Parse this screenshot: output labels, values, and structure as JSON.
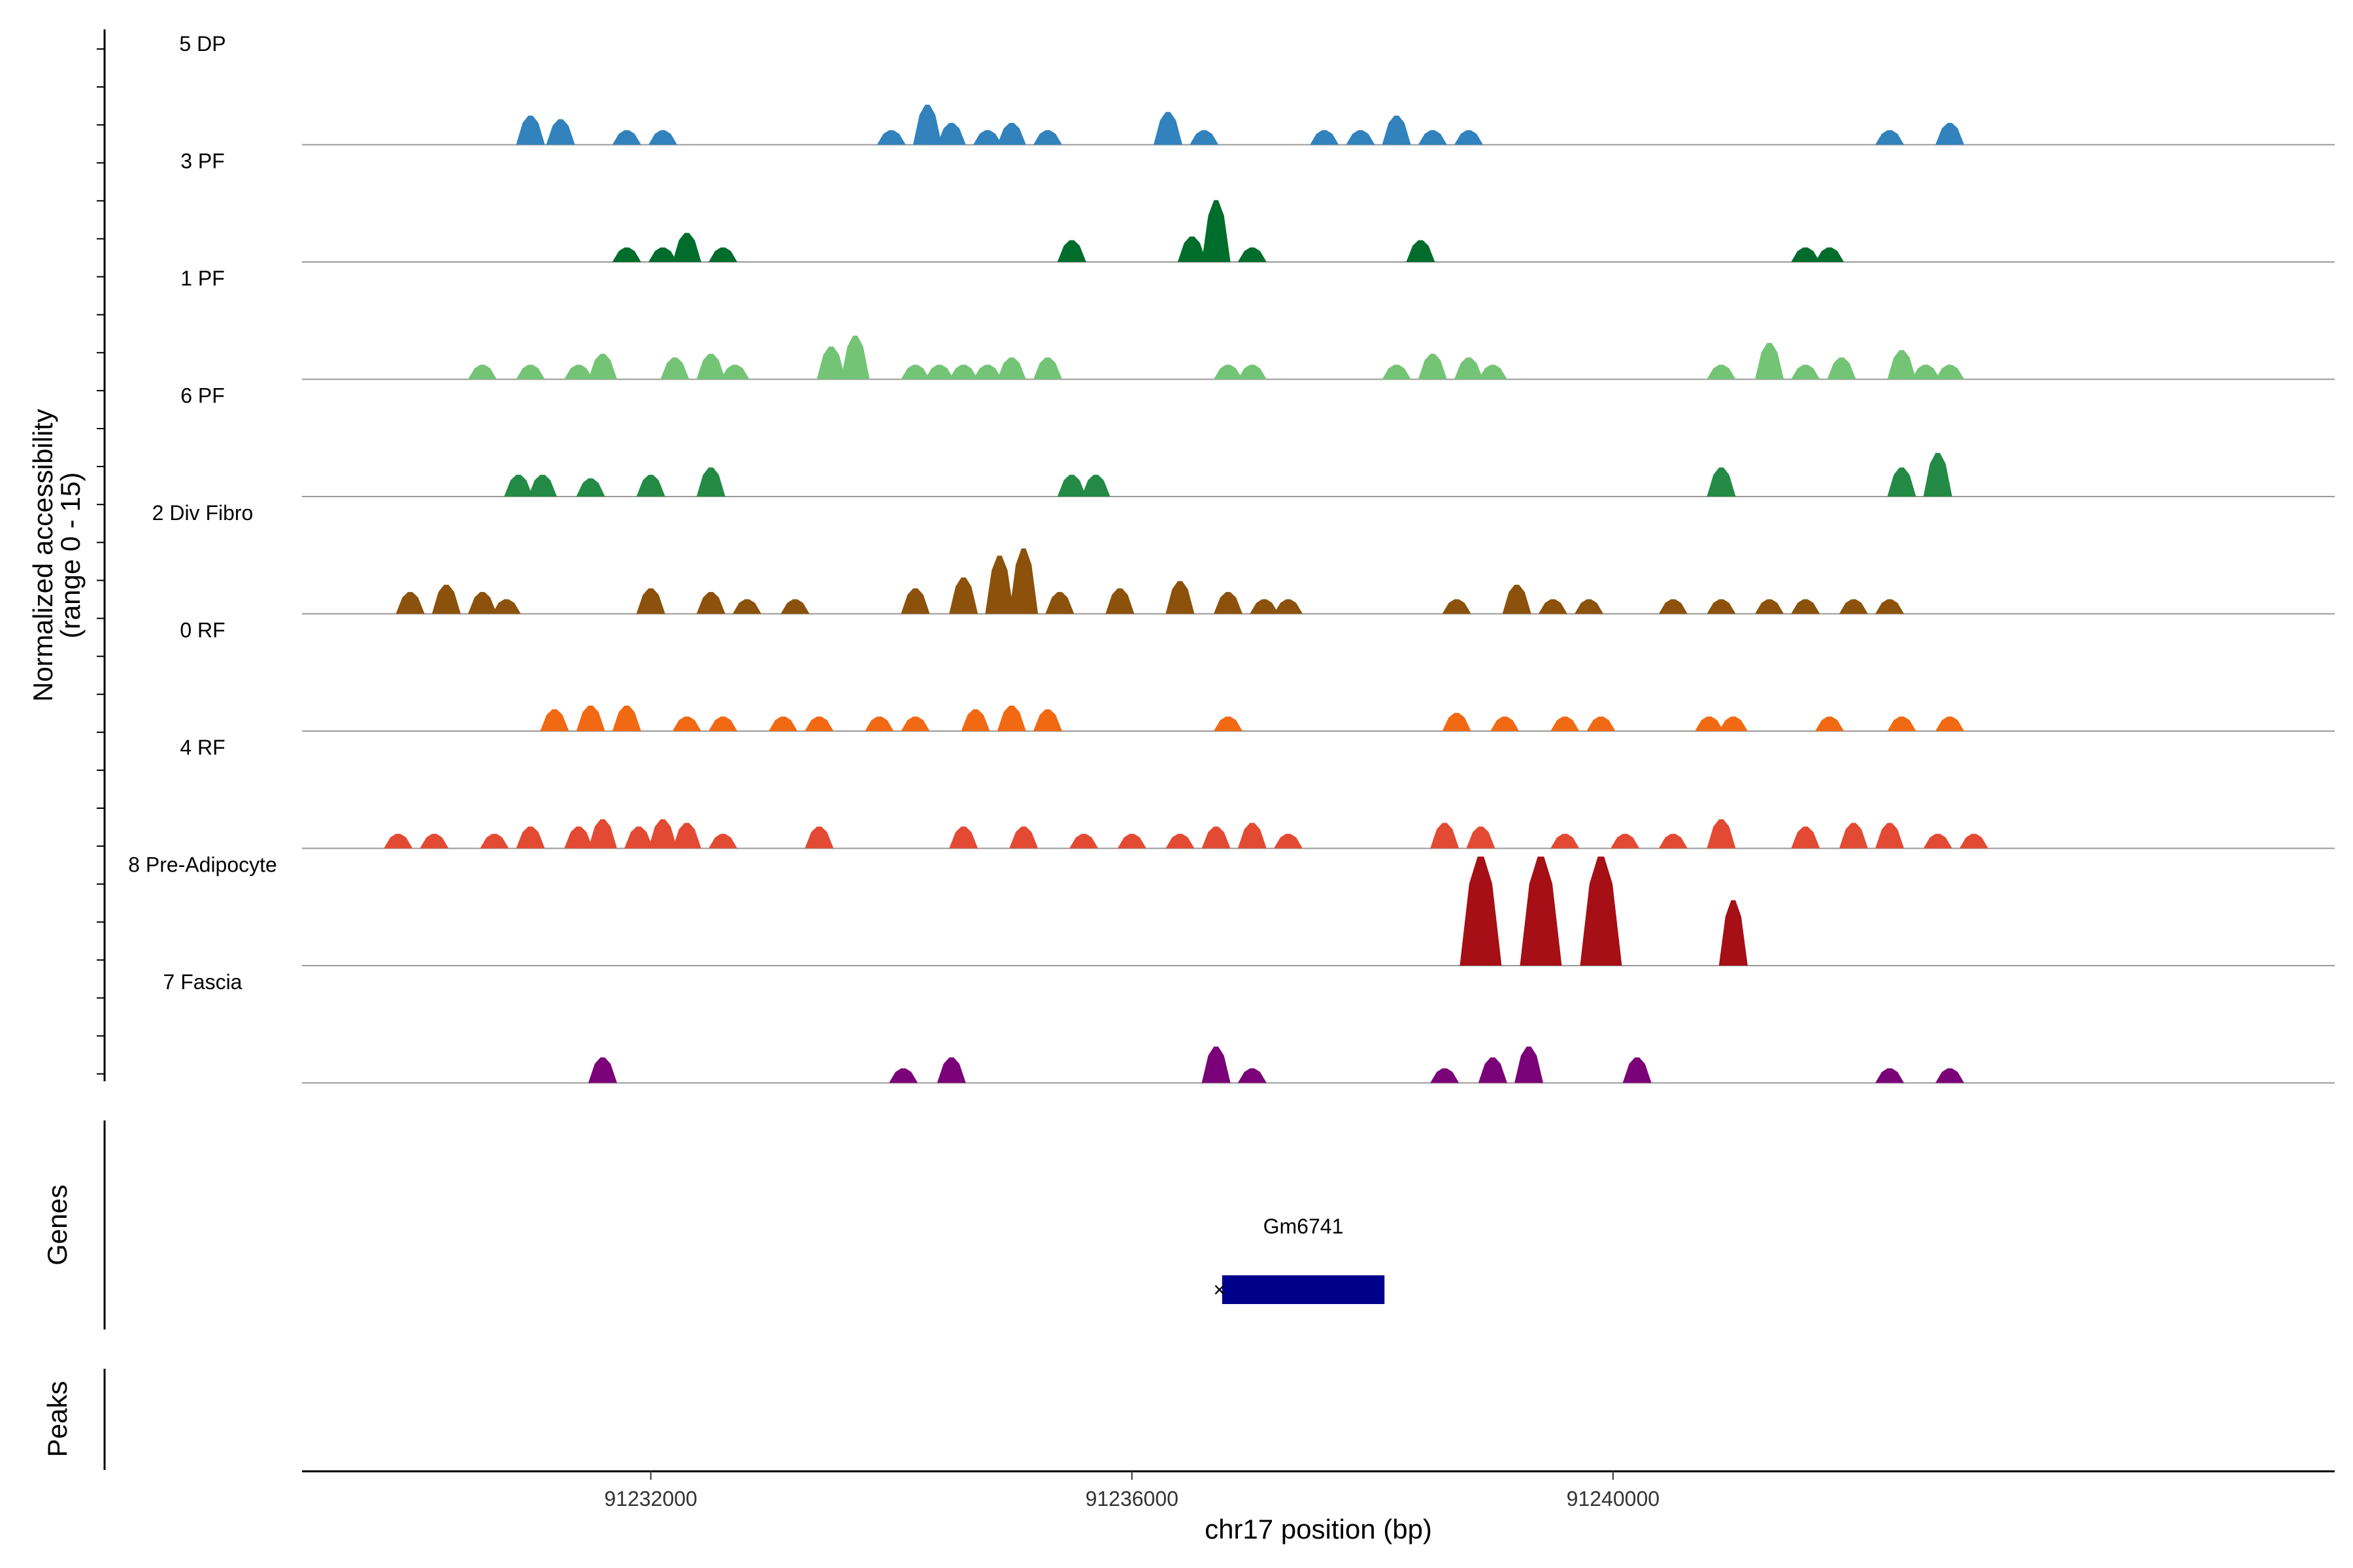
{
  "chart_data": {
    "type": "area",
    "y_axis_title_line1": "Normalized accessibility",
    "y_axis_title_line2": "(range 0 - 15)",
    "ylim": [
      0,
      15
    ],
    "xlabel": "chr17 position (bp)",
    "xlim": [
      91229100,
      91246000
    ],
    "x_ticks": [
      {
        "value": 91232000,
        "label": "91232000"
      },
      {
        "value": 91236000,
        "label": "91236000"
      },
      {
        "value": 91240000,
        "label": "91240000"
      }
    ],
    "tracks": [
      {
        "label": "5 DP",
        "color": "#3182bd",
        "peaks": [
          [
            91231000,
            4
          ],
          [
            91231250,
            3.5
          ],
          [
            91231800,
            2
          ],
          [
            91232100,
            2
          ],
          [
            91234000,
            2
          ],
          [
            91234300,
            5.5
          ],
          [
            91234500,
            3
          ],
          [
            91234800,
            2
          ],
          [
            91235000,
            3
          ],
          [
            91235300,
            2
          ],
          [
            91236300,
            4.5
          ],
          [
            91236600,
            2
          ],
          [
            91237600,
            2
          ],
          [
            91237900,
            2
          ],
          [
            91238200,
            4
          ],
          [
            91238500,
            2
          ],
          [
            91238800,
            2
          ],
          [
            91242300,
            2
          ],
          [
            91242800,
            3
          ]
        ]
      },
      {
        "label": "3 PF",
        "color": "#006d2c",
        "peaks": [
          [
            91231800,
            2
          ],
          [
            91232100,
            2
          ],
          [
            91232300,
            4
          ],
          [
            91232600,
            2
          ],
          [
            91235500,
            3
          ],
          [
            91236500,
            3.5
          ],
          [
            91236700,
            8.5
          ],
          [
            91237000,
            2
          ],
          [
            91238400,
            3
          ],
          [
            91241600,
            2
          ],
          [
            91241800,
            2
          ]
        ]
      },
      {
        "label": "1 PF",
        "color": "#74c476",
        "peaks": [
          [
            91230600,
            2
          ],
          [
            91231000,
            2
          ],
          [
            91231400,
            2
          ],
          [
            91231600,
            3.5
          ],
          [
            91232200,
            3
          ],
          [
            91232500,
            3.5
          ],
          [
            91232700,
            2
          ],
          [
            91233500,
            4.5
          ],
          [
            91233700,
            6
          ],
          [
            91234200,
            2
          ],
          [
            91234400,
            2
          ],
          [
            91234600,
            2
          ],
          [
            91234800,
            2
          ],
          [
            91235000,
            3
          ],
          [
            91235300,
            3
          ],
          [
            91236800,
            2
          ],
          [
            91237000,
            2
          ],
          [
            91238200,
            2
          ],
          [
            91238500,
            3.5
          ],
          [
            91238800,
            3
          ],
          [
            91239000,
            2
          ],
          [
            91240900,
            2
          ],
          [
            91241300,
            5
          ],
          [
            91241600,
            2
          ],
          [
            91241900,
            3
          ],
          [
            91242400,
            4
          ],
          [
            91242600,
            2
          ],
          [
            91242800,
            2
          ]
        ]
      },
      {
        "label": "6 PF",
        "color": "#238b45",
        "peaks": [
          [
            91230900,
            3
          ],
          [
            91231100,
            3
          ],
          [
            91231500,
            2.5
          ],
          [
            91232000,
            3
          ],
          [
            91232500,
            4
          ],
          [
            91235500,
            3
          ],
          [
            91235700,
            3
          ],
          [
            91240900,
            4
          ],
          [
            91242400,
            4
          ],
          [
            91242700,
            6
          ]
        ]
      },
      {
        "label": "2 Div Fibro",
        "color": "#8c510a",
        "peaks": [
          [
            91230000,
            3
          ],
          [
            91230300,
            4
          ],
          [
            91230600,
            3
          ],
          [
            91230800,
            2
          ],
          [
            91232000,
            3.5
          ],
          [
            91232500,
            3
          ],
          [
            91232800,
            2
          ],
          [
            91233200,
            2
          ],
          [
            91234200,
            3.5
          ],
          [
            91234600,
            5
          ],
          [
            91234900,
            8
          ],
          [
            91235100,
            9
          ],
          [
            91235400,
            3
          ],
          [
            91235900,
            3.5
          ],
          [
            91236400,
            4.5
          ],
          [
            91236800,
            3
          ],
          [
            91237100,
            2
          ],
          [
            91237300,
            2
          ],
          [
            91238700,
            2
          ],
          [
            91239200,
            4
          ],
          [
            91239500,
            2
          ],
          [
            91239800,
            2
          ],
          [
            91240500,
            2
          ],
          [
            91240900,
            2
          ],
          [
            91241300,
            2
          ],
          [
            91241600,
            2
          ],
          [
            91242000,
            2
          ],
          [
            91242300,
            2
          ]
        ]
      },
      {
        "label": "0 RF",
        "color": "#f16913",
        "peaks": [
          [
            91231200,
            3
          ],
          [
            91231500,
            3.5
          ],
          [
            91231800,
            3.5
          ],
          [
            91232300,
            2
          ],
          [
            91232600,
            2
          ],
          [
            91233100,
            2
          ],
          [
            91233400,
            2
          ],
          [
            91233900,
            2
          ],
          [
            91234200,
            2
          ],
          [
            91234700,
            3
          ],
          [
            91235000,
            3.5
          ],
          [
            91235300,
            3
          ],
          [
            91236800,
            2
          ],
          [
            91238700,
            2.5
          ],
          [
            91239100,
            2
          ],
          [
            91239600,
            2
          ],
          [
            91239900,
            2
          ],
          [
            91240800,
            2
          ],
          [
            91241000,
            2
          ],
          [
            91241800,
            2
          ],
          [
            91242400,
            2
          ],
          [
            91242800,
            2
          ]
        ]
      },
      {
        "label": "4 RF",
        "color": "#e34a33",
        "peaks": [
          [
            91229900,
            2
          ],
          [
            91230200,
            2
          ],
          [
            91230700,
            2
          ],
          [
            91231000,
            3
          ],
          [
            91231400,
            3
          ],
          [
            91231600,
            4
          ],
          [
            91231900,
            3
          ],
          [
            91232100,
            4
          ],
          [
            91232300,
            3.5
          ],
          [
            91232600,
            2
          ],
          [
            91233400,
            3
          ],
          [
            91234600,
            3
          ],
          [
            91235100,
            3
          ],
          [
            91235600,
            2
          ],
          [
            91236000,
            2
          ],
          [
            91236400,
            2
          ],
          [
            91236700,
            3
          ],
          [
            91237000,
            3.5
          ],
          [
            91237300,
            2
          ],
          [
            91238600,
            3.5
          ],
          [
            91238900,
            3
          ],
          [
            91239600,
            2
          ],
          [
            91240100,
            2
          ],
          [
            91240500,
            2
          ],
          [
            91240900,
            4
          ],
          [
            91241600,
            3
          ],
          [
            91242000,
            3.5
          ],
          [
            91242300,
            3.5
          ],
          [
            91242700,
            2
          ],
          [
            91243000,
            2
          ]
        ]
      },
      {
        "label": "8 Pre-Adipocyte",
        "color": "#a50f15",
        "peaks": [
          [
            91238900,
            15
          ],
          [
            91239400,
            15
          ],
          [
            91239900,
            15
          ],
          [
            91241000,
            9
          ]
        ]
      },
      {
        "label": "7 Fascia",
        "color": "#7a0177",
        "peaks": [
          [
            91231600,
            3.5
          ],
          [
            91234100,
            2
          ],
          [
            91234500,
            3.5
          ],
          [
            91236700,
            5
          ],
          [
            91237000,
            2
          ],
          [
            91238600,
            2
          ],
          [
            91239000,
            3.5
          ],
          [
            91239300,
            5
          ],
          [
            91240200,
            3.5
          ],
          [
            91242300,
            2
          ],
          [
            91242800,
            2
          ]
        ]
      }
    ],
    "genes_panel_title": "Genes",
    "genes": [
      {
        "name": "Gm6741",
        "start": 91236750,
        "end": 91238100,
        "strand_marker": "×"
      }
    ],
    "peaks_panel_title": "Peaks",
    "peaks_regions": []
  }
}
